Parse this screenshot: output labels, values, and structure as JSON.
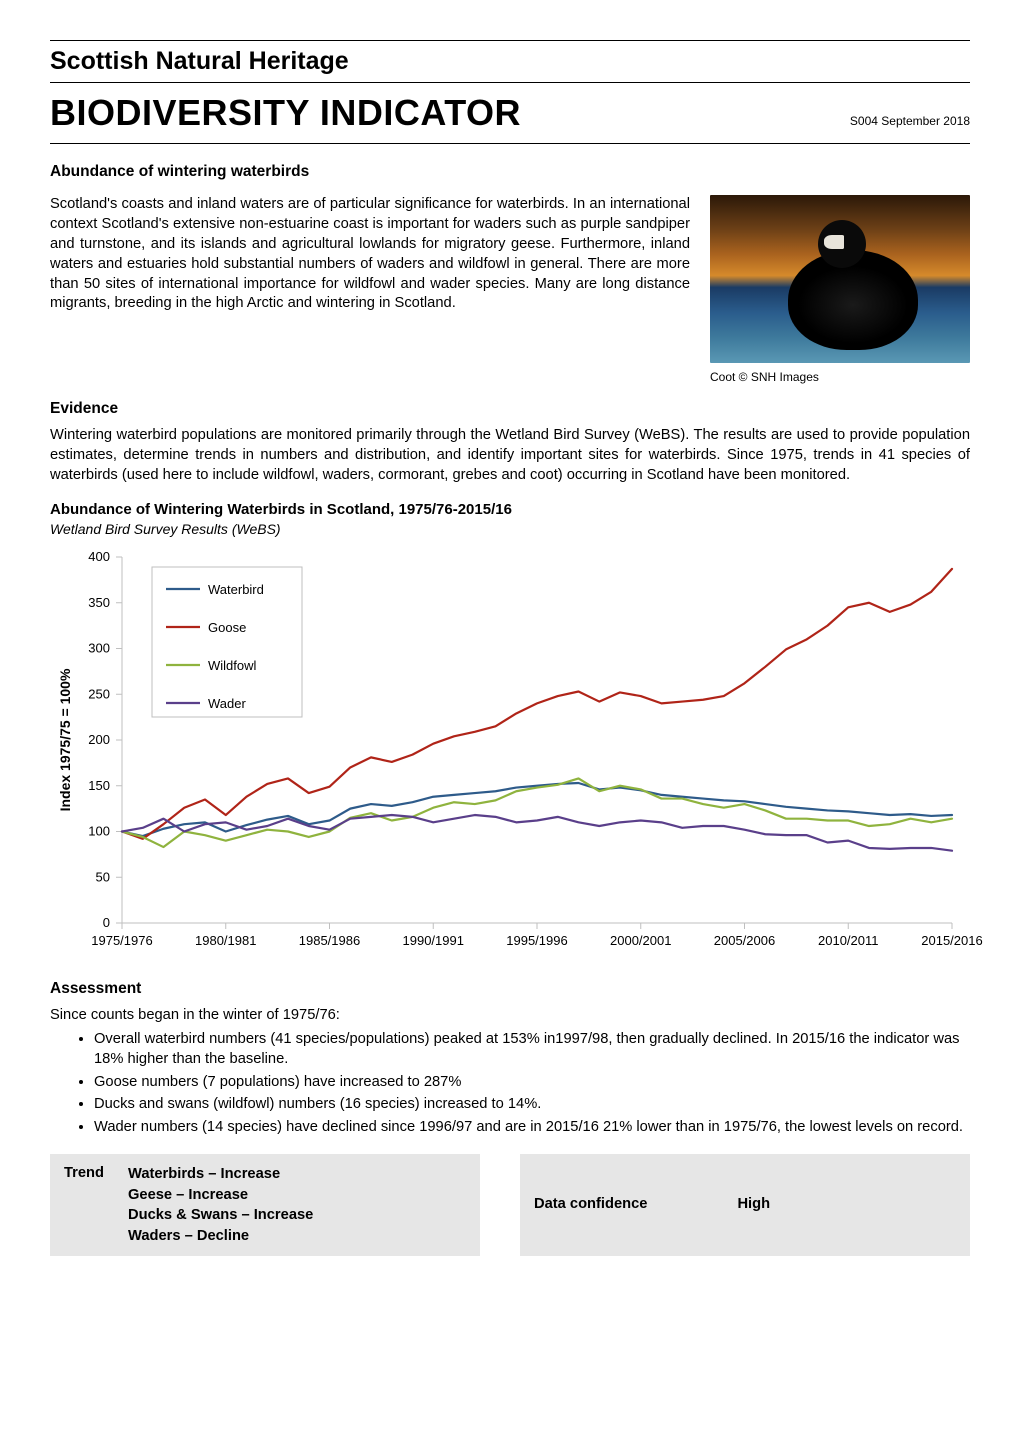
{
  "header": {
    "org": "Scottish Natural Heritage",
    "title": "BIODIVERSITY INDICATOR",
    "date_code": "S004 September 2018"
  },
  "subtitle": "Abundance of wintering waterbirds",
  "intro": "Scotland's coasts and inland waters are of particular significance for waterbirds. In an international context Scotland's extensive non-estuarine coast is important for waders such as purple sandpiper and turnstone, and its islands and agricultural lowlands for migratory geese. Furthermore, inland waters and estuaries hold substantial numbers of waders and wildfowl in general. There are more than 50 sites of international importance for wildfowl and wader species. Many are long distance migrants, breeding in the high Arctic and wintering in Scotland.",
  "image_caption": "Coot © SNH Images",
  "evidence": {
    "head": "Evidence",
    "text": "Wintering waterbird populations are monitored primarily through the Wetland Bird Survey (WeBS). The results are used to provide population estimates, determine trends in numbers and distribution, and identify important sites for waterbirds.  Since 1975, trends in 41 species of waterbirds (used here to include wildfowl, waders, cormorant, grebes and coot) occurring in Scotland have been monitored."
  },
  "chart": {
    "title": "Abundance of Wintering Waterbirds in Scotland, 1975/76-2015/16",
    "subtitle": "Wetland Bird Survey Results (WeBS)",
    "type": "line",
    "ylabel": "Index 1975/75 = 100%",
    "ylim": [
      0,
      400
    ],
    "ytick_step": 50,
    "xlim_labels": [
      "1975/1976",
      "1980/1981",
      "1985/1986",
      "1990/1991",
      "1995/1996",
      "2000/2001",
      "2005/2006",
      "2010/2011",
      "2015/2016"
    ],
    "background_color": "#ffffff",
    "axis_color": "#bfbfbf",
    "tick_color": "#bfbfbf",
    "text_color": "#000000",
    "line_width": 2.2,
    "legend": {
      "position": "top-left-inside",
      "box_border": "#bfbfbf",
      "items": [
        {
          "label": "Waterbird",
          "color": "#2e5b8a"
        },
        {
          "label": "Goose",
          "color": "#b02418"
        },
        {
          "label": "Wildfowl",
          "color": "#8fb33e"
        },
        {
          "label": "Wader",
          "color": "#5a3f8a"
        }
      ]
    },
    "series": {
      "Waterbird": {
        "color": "#2e5b8a",
        "values": [
          100,
          95,
          103,
          108,
          110,
          100,
          107,
          113,
          117,
          108,
          112,
          125,
          130,
          128,
          132,
          138,
          140,
          142,
          144,
          148,
          150,
          152,
          153,
          146,
          148,
          145,
          140,
          138,
          136,
          134,
          133,
          130,
          127,
          125,
          123,
          122,
          120,
          118,
          119,
          117,
          118
        ]
      },
      "Goose": {
        "color": "#b02418",
        "values": [
          100,
          92,
          108,
          126,
          135,
          118,
          138,
          152,
          158,
          142,
          149,
          170,
          181,
          176,
          184,
          196,
          204,
          209,
          215,
          229,
          240,
          248,
          253,
          242,
          252,
          248,
          240,
          242,
          244,
          248,
          262,
          280,
          299,
          310,
          325,
          345,
          350,
          340,
          348,
          362,
          387
        ]
      },
      "Wildfowl": {
        "color": "#8fb33e",
        "values": [
          100,
          94,
          83,
          100,
          96,
          90,
          96,
          102,
          100,
          94,
          100,
          115,
          120,
          112,
          116,
          126,
          132,
          130,
          134,
          144,
          148,
          151,
          158,
          144,
          150,
          146,
          136,
          136,
          130,
          126,
          130,
          123,
          114,
          114,
          112,
          112,
          106,
          108,
          114,
          110,
          114
        ]
      },
      "Wader": {
        "color": "#5a3f8a",
        "values": [
          100,
          104,
          114,
          100,
          108,
          110,
          102,
          106,
          114,
          106,
          102,
          114,
          116,
          118,
          116,
          110,
          114,
          118,
          116,
          110,
          112,
          116,
          110,
          106,
          110,
          112,
          110,
          104,
          106,
          106,
          102,
          97,
          96,
          96,
          88,
          90,
          82,
          81,
          82,
          82,
          79
        ]
      }
    },
    "x_count": 41
  },
  "assessment": {
    "head": "Assessment",
    "lead": "Since counts began in the winter of 1975/76:",
    "bullets": [
      "Overall waterbird numbers (41 species/populations) peaked at 153% in1997/98, then gradually declined. In 2015/16 the indicator was 18% higher than the baseline.",
      "Goose numbers (7 populations) have increased to 287%",
      "Ducks and swans (wildfowl) numbers (16 species) increased to 14%.",
      "Wader numbers (14 species) have declined since 1996/97 and are in 2015/16 21% lower than in 1975/76, the lowest levels on record."
    ]
  },
  "summary": {
    "trend_label": "Trend",
    "trend_items": [
      "Waterbirds – Increase",
      "Geese – Increase",
      "Ducks & Swans – Increase",
      "Waders – Decline"
    ],
    "confidence_label": "Data confidence",
    "confidence_value": "High",
    "bg_color": "#e6e6e6"
  }
}
